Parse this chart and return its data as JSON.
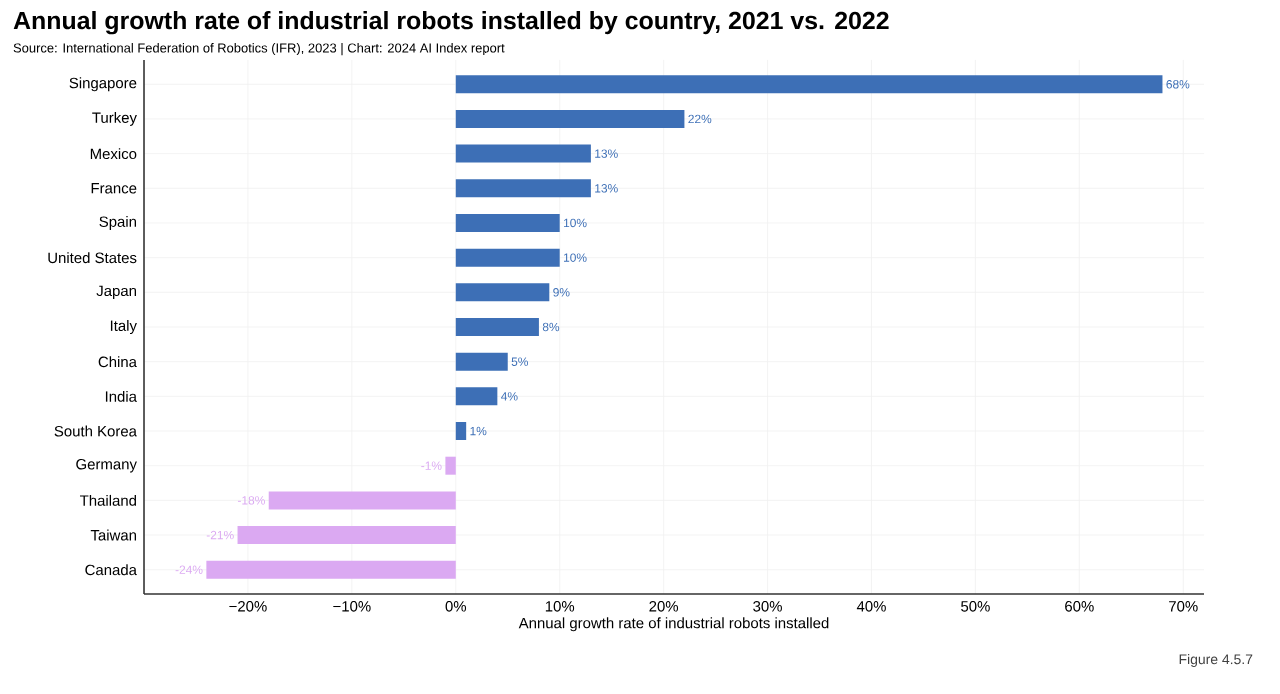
{
  "chart_data": {
    "type": "bar",
    "orientation": "horizontal",
    "title": "Annual growth rate of industrial robots installed by country, 2021 vs. 2022",
    "subtitle": "Source: International Federation of Robotics (IFR), 2023 | Chart: 2024 AI Index report",
    "xlabel": "Annual growth rate of industrial robots installed",
    "annotations": [
      "Figure 4.5.7"
    ],
    "categories": [
      "Singapore",
      "Turkey",
      "Mexico",
      "France",
      "Spain",
      "United States",
      "Japan",
      "Italy",
      "China",
      "India",
      "South Korea",
      "Germany",
      "Thailand",
      "Taiwan",
      "Canada"
    ],
    "values": [
      68,
      22,
      13,
      13,
      10,
      10,
      9,
      8,
      5,
      4,
      1,
      -1,
      -18,
      -21,
      -24
    ],
    "value_labels": [
      "68%",
      "22%",
      "13%",
      "13%",
      "10%",
      "10%",
      "9%",
      "8%",
      "5%",
      "4%",
      "1%",
      "-1%",
      "-18%",
      "-21%",
      "-24%"
    ],
    "colors": [
      "#3d6fb6",
      "#3d6fb6",
      "#3d6fb6",
      "#3d6fb6",
      "#3d6fb6",
      "#3d6fb6",
      "#3d6fb6",
      "#3d6fb6",
      "#3d6fb6",
      "#3d6fb6",
      "#3d6fb6",
      "#dba9f2",
      "#dba9f2",
      "#dba9f2",
      "#dba9f2"
    ],
    "xlim": [
      -30,
      72
    ],
    "xticks": [
      {
        "value": -20,
        "label": "−20%"
      },
      {
        "value": -10,
        "label": "−10%"
      },
      {
        "value": 0,
        "label": "0%"
      },
      {
        "value": 10,
        "label": "10%"
      },
      {
        "value": 20,
        "label": "20%"
      },
      {
        "value": 30,
        "label": "30%"
      },
      {
        "value": 40,
        "label": "40%"
      },
      {
        "value": 50,
        "label": "50%"
      },
      {
        "value": 60,
        "label": "60%"
      },
      {
        "value": 70,
        "label": "70%"
      }
    ],
    "grid": true
  }
}
